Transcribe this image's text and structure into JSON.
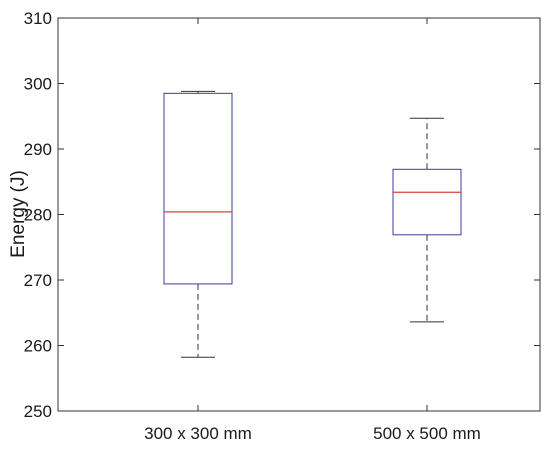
{
  "chart_data": {
    "type": "boxplot",
    "title": "",
    "xlabel": "",
    "ylabel": "Energy (J)",
    "ylim": [
      250,
      310
    ],
    "yticks": [
      250,
      260,
      270,
      280,
      290,
      300,
      310
    ],
    "grid": false,
    "categories": [
      "300 x 300 mm",
      "500 x 500 mm"
    ],
    "boxes": [
      {
        "category": "300 x 300 mm",
        "min": 258.2,
        "q1": 269.4,
        "median": 280.4,
        "q3": 298.5,
        "max": 298.8
      },
      {
        "category": "500 x 500 mm",
        "min": 263.6,
        "q1": 276.9,
        "median": 283.4,
        "q3": 286.9,
        "max": 294.7
      }
    ],
    "colors": {
      "box": "#3b3b9e",
      "median": "#e0403a",
      "whisker": "#333333",
      "axes": "#333333"
    }
  }
}
